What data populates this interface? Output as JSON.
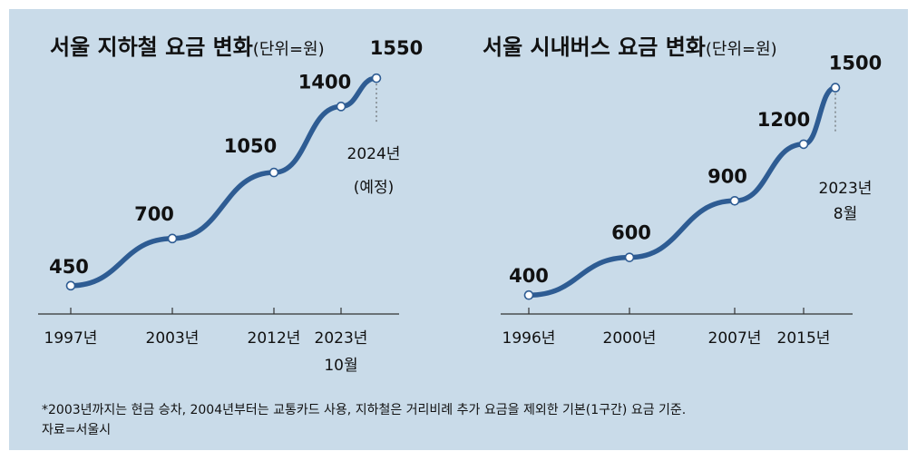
{
  "chart_data": [
    {
      "type": "line",
      "title": "서울 지하철 요금 변화",
      "unit": "(단위=원)",
      "x": [
        "1997년",
        "2003년",
        "2012년",
        "2023년 10월",
        "2024년 (예정)"
      ],
      "values": [
        450,
        700,
        1050,
        1400,
        1550
      ],
      "value_labels": [
        "450",
        "700",
        "1050",
        "1400",
        "1550"
      ],
      "tick_labels": [
        {
          "line1": "1997년",
          "line2": ""
        },
        {
          "line1": "2003년",
          "line2": ""
        },
        {
          "line1": "2012년",
          "line2": ""
        },
        {
          "line1": "2023년",
          "line2": "10월"
        }
      ],
      "end_annotation": {
        "line1": "2024년",
        "line2": "(예정)"
      },
      "ylim": [
        300,
        1700
      ],
      "line_color": "#2e5c93"
    },
    {
      "type": "line",
      "title": "서울 시내버스 요금 변화",
      "unit": "(단위=원)",
      "x": [
        "1996년",
        "2000년",
        "2007년",
        "2015년",
        "2023년 8월"
      ],
      "values": [
        400,
        600,
        900,
        1200,
        1500
      ],
      "value_labels": [
        "400",
        "600",
        "900",
        "1200",
        "1500"
      ],
      "tick_labels": [
        {
          "line1": "1996년",
          "line2": ""
        },
        {
          "line1": "2000년",
          "line2": ""
        },
        {
          "line1": "2007년",
          "line2": ""
        },
        {
          "line1": "2015년",
          "line2": ""
        }
      ],
      "end_annotation": {
        "line1": "2023년",
        "line2": "8월"
      },
      "ylim": [
        300,
        1700
      ],
      "line_color": "#2e5c93"
    }
  ],
  "footnote": {
    "line1": "*2003년까지는 현금 승차, 2004년부터는 교통카드 사용, 지하철은 거리비례 추가 요금을 제외한 기본(1구간) 요금 기준.",
    "line2": "자료=서울시"
  },
  "colors": {
    "background": "#c9dbe9",
    "line": "#2e5c93",
    "marker_fill": "#ffffff"
  }
}
